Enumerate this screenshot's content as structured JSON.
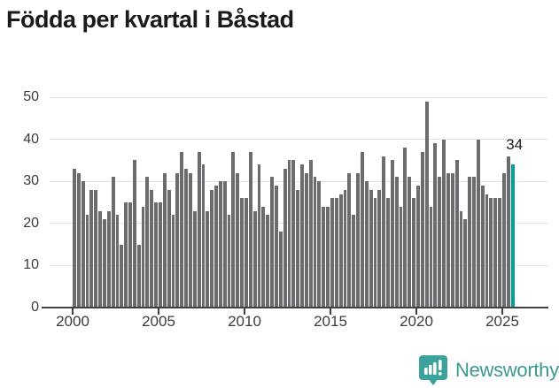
{
  "title": "Födda per kvartal i Båstad",
  "chart_data": {
    "type": "bar",
    "title": "Födda per kvartal i Båstad",
    "x_start": "2000-Q1",
    "x_end": "2025-Q3",
    "period": "quarterly",
    "values": [
      33,
      32,
      30,
      22,
      28,
      28,
      23,
      21,
      23,
      31,
      22,
      15,
      25,
      25,
      35,
      15,
      24,
      31,
      28,
      25,
      25,
      32,
      28,
      22,
      32,
      37,
      33,
      32,
      23,
      37,
      34,
      23,
      28,
      29,
      30,
      30,
      22,
      37,
      32,
      26,
      26,
      37,
      23,
      34,
      24,
      22,
      31,
      29,
      18,
      33,
      35,
      35,
      28,
      34,
      32,
      35,
      31,
      30,
      24,
      24,
      26,
      26,
      27,
      28,
      32,
      22,
      32,
      37,
      30,
      28,
      26,
      28,
      36,
      26,
      35,
      31,
      24,
      38,
      31,
      26,
      29,
      37,
      49,
      24,
      39,
      31,
      40,
      32,
      32,
      35,
      23,
      21,
      31,
      31,
      40,
      29,
      27,
      26,
      26,
      26,
      32,
      36,
      34
    ],
    "yticks": [
      "0",
      "10",
      "20",
      "30",
      "40",
      "50"
    ],
    "xticks": [
      "2000",
      "2005",
      "2010",
      "2015",
      "2020",
      "2025"
    ],
    "ylim": [
      0,
      50
    ],
    "grid": "horizontal",
    "bar_color": "#6c6c70",
    "highlight_color": "#00a19c",
    "highlight_last_bar": true,
    "annotation": {
      "text": "34",
      "applies_to": "last-bar"
    }
  },
  "branding": {
    "logo_text": "Newsworthy",
    "logo_text_color": "#3a9a92",
    "logo_icon_color": "#3ca29a",
    "logo_icon": "bar-chart-speech-bubble-icon"
  }
}
